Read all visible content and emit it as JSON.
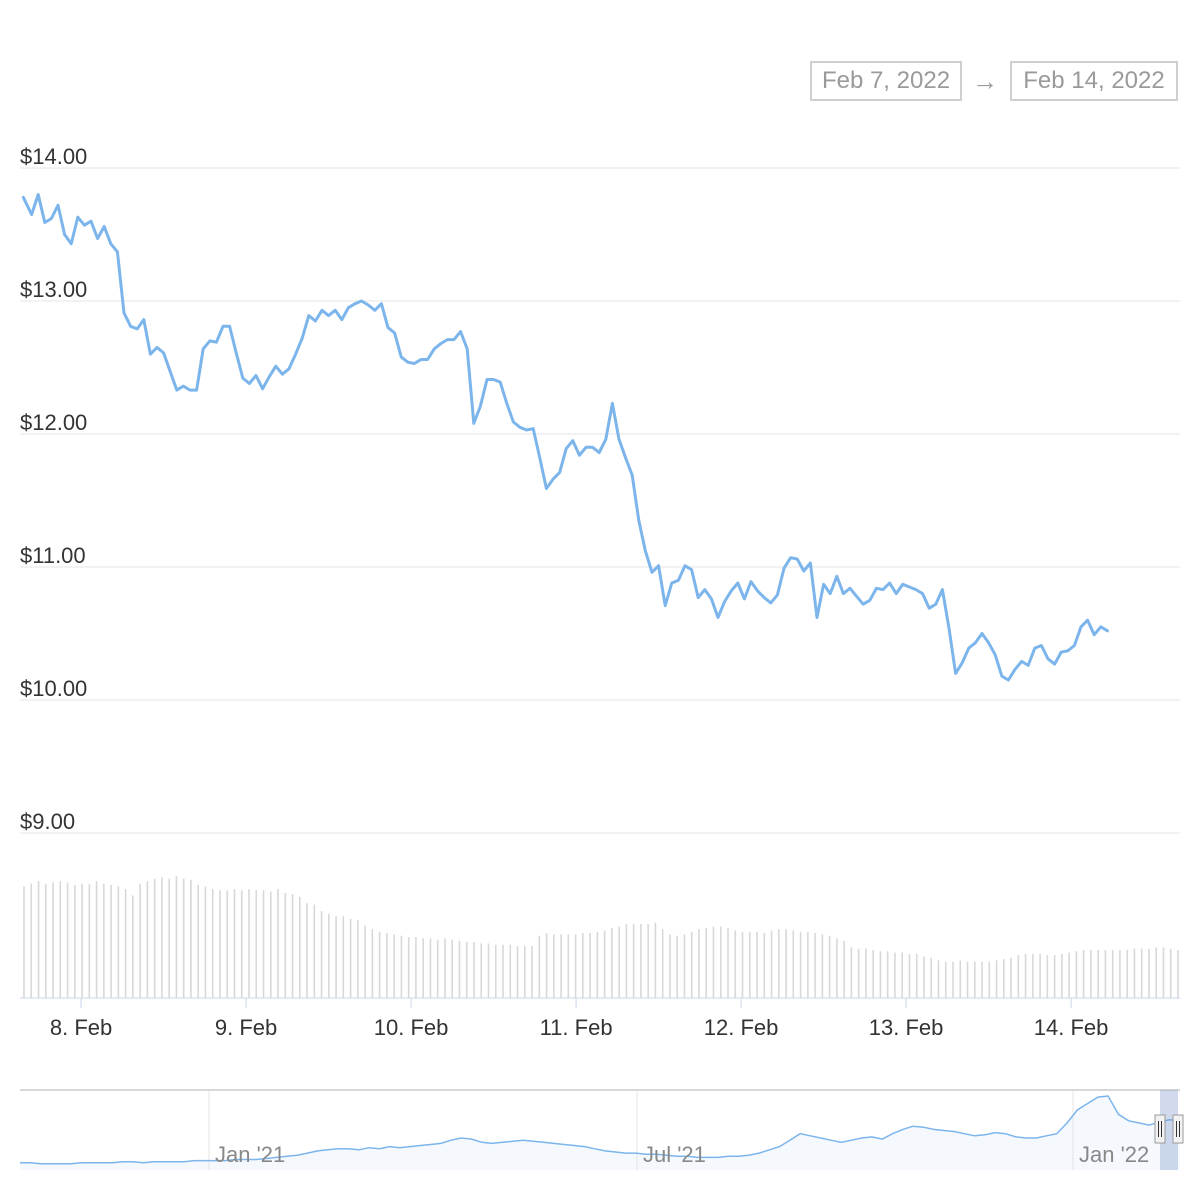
{
  "range_selector": {
    "from_value": "Feb 7, 2022",
    "arrow": "→",
    "to_value": "Feb 14, 2022"
  },
  "chart_data": {
    "type": "line",
    "x_unit": "day of Feb 2022",
    "xlim": [
      7.63,
      14.66
    ],
    "ylim": [
      9.0,
      14.0
    ],
    "y_ticks": [
      {
        "value": 14,
        "label": "$14.00"
      },
      {
        "value": 13,
        "label": "$13.00"
      },
      {
        "value": 12,
        "label": "$12.00"
      },
      {
        "value": 11,
        "label": "$11.00"
      },
      {
        "value": 10,
        "label": "$10.00"
      },
      {
        "value": 9,
        "label": "$9.00"
      }
    ],
    "x_ticks": [
      {
        "value": 8,
        "label": "8. Feb"
      },
      {
        "value": 9,
        "label": "9. Feb"
      },
      {
        "value": 10,
        "label": "10. Feb"
      },
      {
        "value": 11,
        "label": "11. Feb"
      },
      {
        "value": 12,
        "label": "12. Feb"
      },
      {
        "value": 13,
        "label": "13. Feb"
      },
      {
        "value": 14,
        "label": "14. Feb"
      }
    ],
    "grid": true,
    "line_color": "#7cb5ec",
    "series": [
      {
        "points": [
          [
            7.65,
            13.78
          ],
          [
            7.7,
            13.65
          ],
          [
            7.74,
            13.8
          ],
          [
            7.78,
            13.59
          ],
          [
            7.82,
            13.62
          ],
          [
            7.86,
            13.72
          ],
          [
            7.9,
            13.5
          ],
          [
            7.94,
            13.43
          ],
          [
            7.98,
            13.63
          ],
          [
            8.02,
            13.57
          ],
          [
            8.06,
            13.6
          ],
          [
            8.1,
            13.47
          ],
          [
            8.14,
            13.56
          ],
          [
            8.18,
            13.43
          ],
          [
            8.22,
            13.37
          ],
          [
            8.26,
            12.91
          ],
          [
            8.3,
            12.81
          ],
          [
            8.34,
            12.79
          ],
          [
            8.38,
            12.86
          ],
          [
            8.42,
            12.6
          ],
          [
            8.46,
            12.65
          ],
          [
            8.5,
            12.61
          ],
          [
            8.54,
            12.47
          ],
          [
            8.58,
            12.33
          ],
          [
            8.62,
            12.36
          ],
          [
            8.66,
            12.33
          ],
          [
            8.7,
            12.33
          ],
          [
            8.74,
            12.64
          ],
          [
            8.78,
            12.7
          ],
          [
            8.82,
            12.69
          ],
          [
            8.86,
            12.81
          ],
          [
            8.9,
            12.81
          ],
          [
            8.94,
            12.61
          ],
          [
            8.98,
            12.42
          ],
          [
            9.02,
            12.38
          ],
          [
            9.06,
            12.44
          ],
          [
            9.1,
            12.34
          ],
          [
            9.14,
            12.43
          ],
          [
            9.18,
            12.51
          ],
          [
            9.22,
            12.45
          ],
          [
            9.26,
            12.49
          ],
          [
            9.3,
            12.6
          ],
          [
            9.34,
            12.72
          ],
          [
            9.38,
            12.89
          ],
          [
            9.42,
            12.85
          ],
          [
            9.46,
            12.93
          ],
          [
            9.5,
            12.89
          ],
          [
            9.54,
            12.93
          ],
          [
            9.58,
            12.86
          ],
          [
            9.62,
            12.95
          ],
          [
            9.66,
            12.98
          ],
          [
            9.7,
            13.0
          ],
          [
            9.74,
            12.97
          ],
          [
            9.78,
            12.93
          ],
          [
            9.82,
            12.98
          ],
          [
            9.86,
            12.8
          ],
          [
            9.9,
            12.76
          ],
          [
            9.94,
            12.58
          ],
          [
            9.98,
            12.54
          ],
          [
            10.02,
            12.53
          ],
          [
            10.06,
            12.56
          ],
          [
            10.1,
            12.56
          ],
          [
            10.14,
            12.64
          ],
          [
            10.18,
            12.68
          ],
          [
            10.22,
            12.71
          ],
          [
            10.26,
            12.71
          ],
          [
            10.3,
            12.77
          ],
          [
            10.34,
            12.64
          ],
          [
            10.38,
            12.08
          ],
          [
            10.42,
            12.21
          ],
          [
            10.46,
            12.41
          ],
          [
            10.5,
            12.41
          ],
          [
            10.54,
            12.39
          ],
          [
            10.58,
            12.23
          ],
          [
            10.62,
            12.09
          ],
          [
            10.66,
            12.05
          ],
          [
            10.7,
            12.03
          ],
          [
            10.74,
            12.04
          ],
          [
            10.78,
            11.82
          ],
          [
            10.82,
            11.59
          ],
          [
            10.86,
            11.66
          ],
          [
            10.9,
            11.71
          ],
          [
            10.94,
            11.89
          ],
          [
            10.98,
            11.95
          ],
          [
            11.02,
            11.84
          ],
          [
            11.06,
            11.9
          ],
          [
            11.1,
            11.9
          ],
          [
            11.14,
            11.86
          ],
          [
            11.18,
            11.96
          ],
          [
            11.22,
            12.23
          ],
          [
            11.26,
            11.96
          ],
          [
            11.3,
            11.82
          ],
          [
            11.34,
            11.69
          ],
          [
            11.38,
            11.35
          ],
          [
            11.42,
            11.12
          ],
          [
            11.46,
            10.96
          ],
          [
            11.5,
            11.01
          ],
          [
            11.54,
            10.71
          ],
          [
            11.58,
            10.88
          ],
          [
            11.62,
            10.9
          ],
          [
            11.66,
            11.01
          ],
          [
            11.7,
            10.98
          ],
          [
            11.74,
            10.77
          ],
          [
            11.78,
            10.83
          ],
          [
            11.82,
            10.76
          ],
          [
            11.86,
            10.62
          ],
          [
            11.9,
            10.74
          ],
          [
            11.94,
            10.82
          ],
          [
            11.98,
            10.88
          ],
          [
            12.02,
            10.76
          ],
          [
            12.06,
            10.89
          ],
          [
            12.1,
            10.82
          ],
          [
            12.14,
            10.77
          ],
          [
            12.18,
            10.73
          ],
          [
            12.22,
            10.79
          ],
          [
            12.26,
            10.99
          ],
          [
            12.3,
            11.07
          ],
          [
            12.34,
            11.06
          ],
          [
            12.38,
            10.97
          ],
          [
            12.42,
            11.03
          ],
          [
            12.46,
            10.62
          ],
          [
            12.5,
            10.87
          ],
          [
            12.54,
            10.8
          ],
          [
            12.58,
            10.93
          ],
          [
            12.62,
            10.8
          ],
          [
            12.66,
            10.84
          ],
          [
            12.7,
            10.78
          ],
          [
            12.74,
            10.72
          ],
          [
            12.78,
            10.75
          ],
          [
            12.82,
            10.84
          ],
          [
            12.86,
            10.83
          ],
          [
            12.9,
            10.88
          ],
          [
            12.94,
            10.8
          ],
          [
            12.98,
            10.87
          ],
          [
            13.02,
            10.85
          ],
          [
            13.06,
            10.83
          ],
          [
            13.1,
            10.8
          ],
          [
            13.14,
            10.69
          ],
          [
            13.18,
            10.72
          ],
          [
            13.22,
            10.83
          ],
          [
            13.26,
            10.54
          ],
          [
            13.3,
            10.2
          ],
          [
            13.34,
            10.28
          ],
          [
            13.38,
            10.39
          ],
          [
            13.42,
            10.43
          ],
          [
            13.46,
            10.5
          ],
          [
            13.5,
            10.43
          ],
          [
            13.54,
            10.34
          ],
          [
            13.58,
            10.18
          ],
          [
            13.62,
            10.15
          ],
          [
            13.66,
            10.23
          ],
          [
            13.7,
            10.29
          ],
          [
            13.74,
            10.26
          ],
          [
            13.78,
            10.39
          ],
          [
            13.82,
            10.41
          ],
          [
            13.86,
            10.31
          ],
          [
            13.9,
            10.27
          ],
          [
            13.94,
            10.36
          ],
          [
            13.98,
            10.37
          ],
          [
            14.02,
            10.41
          ],
          [
            14.06,
            10.55
          ],
          [
            14.1,
            10.6
          ],
          [
            14.14,
            10.49
          ],
          [
            14.18,
            10.55
          ],
          [
            14.22,
            10.52
          ]
        ]
      }
    ],
    "volume": {
      "bar_color": "#d8d8d8",
      "values": [
        86,
        88,
        90,
        88,
        89,
        90,
        89,
        87,
        88,
        88,
        90,
        88,
        87,
        86,
        84,
        79,
        88,
        90,
        92,
        93,
        92,
        94,
        92,
        91,
        87,
        86,
        84,
        83,
        83,
        84,
        83,
        84,
        83,
        83,
        82,
        84,
        81,
        80,
        78,
        73,
        72,
        67,
        65,
        63,
        63,
        61,
        60,
        56,
        53,
        51,
        50,
        49,
        48,
        47,
        47,
        46,
        46,
        45,
        46,
        45,
        44,
        43,
        43,
        42,
        42,
        41,
        41,
        41,
        40,
        40,
        40,
        48,
        50,
        49,
        49,
        49,
        49,
        50,
        50,
        51,
        52,
        54,
        55,
        57,
        57,
        57,
        57,
        58,
        53,
        49,
        48,
        49,
        51,
        53,
        54,
        55,
        55,
        54,
        52,
        51,
        51,
        51,
        50,
        52,
        53,
        53,
        52,
        51,
        51,
        50,
        49,
        48,
        46,
        44,
        39,
        38,
        38,
        37,
        36,
        36,
        35,
        35,
        34,
        34,
        32,
        31,
        29,
        28,
        28,
        29,
        28,
        28,
        28,
        28,
        29,
        30,
        31,
        33,
        34,
        34,
        34,
        33,
        33,
        34,
        35,
        36,
        37,
        37,
        37,
        37,
        37,
        37,
        37,
        38,
        38,
        38,
        39,
        39,
        38,
        37
      ]
    },
    "navigator": {
      "x_labels": [
        "Jan '21",
        "Jul '21",
        "Jan '22"
      ],
      "values": [
        3,
        3,
        2,
        2,
        2,
        2,
        3,
        3,
        3,
        3,
        4,
        4,
        3,
        4,
        4,
        4,
        4,
        5,
        5,
        5,
        5,
        6,
        6,
        6,
        7,
        8,
        9,
        10,
        12,
        14,
        15,
        16,
        16,
        15,
        17,
        16,
        18,
        17,
        18,
        19,
        20,
        21,
        24,
        26,
        25,
        22,
        21,
        22,
        23,
        24,
        23,
        22,
        21,
        20,
        19,
        18,
        16,
        14,
        13,
        12,
        12,
        11,
        11,
        10,
        9,
        9,
        8,
        8,
        8,
        9,
        9,
        10,
        12,
        15,
        18,
        24,
        30,
        28,
        26,
        24,
        22,
        24,
        26,
        27,
        25,
        30,
        34,
        37,
        36,
        34,
        33,
        32,
        30,
        28,
        29,
        31,
        30,
        27,
        26,
        26,
        28,
        30,
        40,
        52,
        58,
        64,
        65,
        48,
        42,
        40,
        38,
        41,
        43,
        42
      ]
    }
  }
}
